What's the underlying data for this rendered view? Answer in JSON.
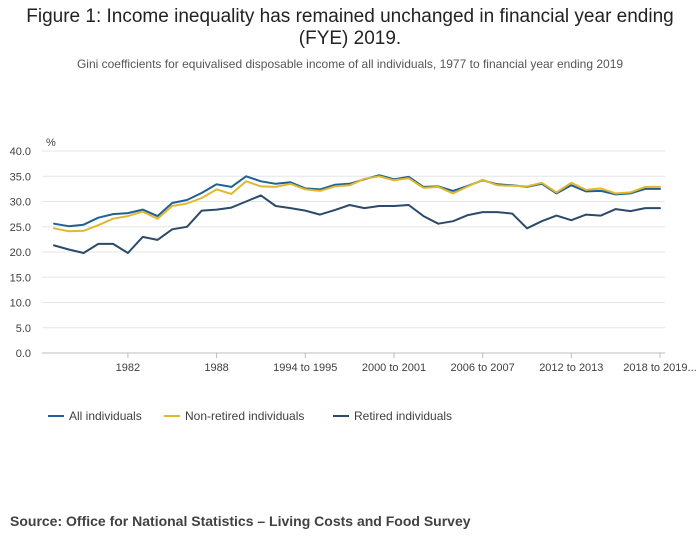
{
  "title": "Figure 1: Income inequality has remained unchanged in financial year ending (FYE) 2019.",
  "subtitle": "Gini coefficients for equivalised disposable income of all individuals, 1977 to financial year ending 2019",
  "source": "Source: Office for National Statistics – Living Costs and Food Survey",
  "colors": {
    "all": "#206095",
    "non_retired": "#e0b82f",
    "retired": "#2c4a6a",
    "grid": "#e6e6e6",
    "axis": "#bcbcbc"
  },
  "chart_data": {
    "type": "line",
    "ylabel": "%",
    "ylim": [
      0,
      40
    ],
    "yticks": [
      "0.0",
      "5.0",
      "10.0",
      "15.0",
      "20.0",
      "25.0",
      "30.0",
      "35.0",
      "40.0"
    ],
    "x": [
      "1977",
      "1978",
      "1979",
      "1980",
      "1981",
      "1982",
      "1983",
      "1984",
      "1985",
      "1986",
      "1987",
      "1988",
      "1989",
      "1990",
      "1991",
      "1992",
      "1993",
      "1994 to 1995",
      "1995 to 1996",
      "1996 to 1997",
      "1997 to 1998",
      "1998 to 1999",
      "1999 to 2000",
      "2000 to 2001",
      "2001 to 2002",
      "2002 to 2003",
      "2003 to 2004",
      "2004 to 2005",
      "2005 to 2006",
      "2006 to 2007",
      "2007 to 2008",
      "2008 to 2009",
      "2009 to 2010",
      "2010 to 2011",
      "2011 to 2012",
      "2012 to 2013",
      "2013 to 2014",
      "2014 to 2015",
      "2015 to 2016",
      "2016 to 2017",
      "2017 to 2018",
      "2018 to 2019"
    ],
    "xticks": [
      "1982",
      "1988",
      "1994 to 1995",
      "2000 to 2001",
      "2006 to 2007",
      "2012 to 2013",
      "2018 to 2019"
    ],
    "xtick_labels": [
      "1982",
      "1988",
      "1994 to 1995",
      "2000 to 2001",
      "2006 to 2007",
      "2012 to 2013",
      "2018 to 2019..."
    ],
    "grid": true,
    "legend_position": "bottom-left",
    "series": [
      {
        "name": "All individuals",
        "color": "#206095",
        "values": [
          25.6,
          25.1,
          25.4,
          26.8,
          27.5,
          27.7,
          28.4,
          27.1,
          29.7,
          30.3,
          31.7,
          33.4,
          32.9,
          35.0,
          34.0,
          33.5,
          33.8,
          32.6,
          32.4,
          33.3,
          33.5,
          34.4,
          35.2,
          34.4,
          34.9,
          32.9,
          33.0,
          32.1,
          33.1,
          34.2,
          33.4,
          33.2,
          32.9,
          33.5,
          31.6,
          33.2,
          32.0,
          32.1,
          31.4,
          31.6,
          32.5,
          32.5
        ]
      },
      {
        "name": "Non-retired individuals",
        "color": "#e0b82f",
        "values": [
          24.7,
          24.1,
          24.2,
          25.3,
          26.6,
          27.1,
          28.0,
          26.6,
          29.1,
          29.6,
          30.7,
          32.4,
          31.5,
          34.0,
          33.0,
          32.9,
          33.5,
          32.4,
          32.1,
          33.0,
          33.2,
          34.5,
          35.0,
          34.2,
          34.6,
          32.7,
          32.9,
          31.6,
          33.0,
          34.3,
          33.2,
          33.1,
          33.0,
          33.7,
          31.8,
          33.7,
          32.3,
          32.6,
          31.6,
          31.8,
          32.9,
          32.9
        ]
      },
      {
        "name": "Retired individuals",
        "color": "#2c4a6a",
        "values": [
          21.3,
          20.5,
          19.8,
          21.6,
          21.6,
          19.8,
          23.0,
          22.4,
          24.5,
          25.0,
          28.2,
          28.4,
          28.8,
          30.0,
          31.2,
          29.1,
          28.7,
          28.2,
          27.4,
          28.3,
          29.3,
          28.7,
          29.1,
          29.1,
          29.3,
          27.1,
          25.6,
          26.1,
          27.3,
          27.9,
          27.9,
          27.6,
          24.7,
          26.1,
          27.2,
          26.3,
          27.4,
          27.2,
          28.5,
          28.1,
          28.7,
          28.7
        ]
      }
    ]
  }
}
